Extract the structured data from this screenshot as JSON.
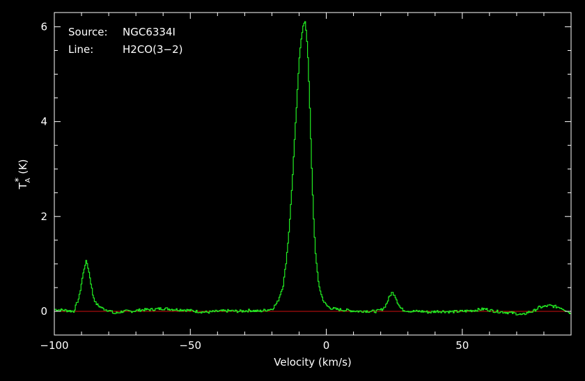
{
  "chart_data": {
    "type": "line",
    "xlabel": "Velocity (km/s)",
    "ylabel_main": "T",
    "ylabel_sup": "*",
    "ylabel_sub": "A",
    "ylabel_unit": "(K)",
    "xlim": [
      -100,
      90
    ],
    "ylim": [
      -0.5,
      6.3
    ],
    "xticks": [
      -100,
      -50,
      0,
      50
    ],
    "xtick_labels": [
      "−100",
      "−50",
      "0",
      "50"
    ],
    "yticks": [
      0,
      2,
      4,
      6
    ],
    "ytick_labels": [
      "0",
      "2",
      "4",
      "6"
    ],
    "grid": false,
    "annotations": [
      {
        "label": "Source:",
        "value": "NGC6334I"
      },
      {
        "label": "Line:",
        "value": "H2CO(3−2)"
      }
    ],
    "baseline": {
      "y": 0,
      "color": "#d01010"
    },
    "series": [
      {
        "color": "#22ee22",
        "x": [
          -100,
          -96,
          -93,
          -91,
          -90,
          -89,
          -88.5,
          -88,
          -87,
          -86,
          -85,
          -84,
          -82,
          -80,
          -78,
          -75,
          -72,
          -68,
          -64,
          -60,
          -56,
          -52,
          -48,
          -44,
          -40,
          -36,
          -32,
          -28,
          -25,
          -22,
          -20,
          -18,
          -16,
          -15,
          -14,
          -13,
          -12,
          -11,
          -10,
          -9.5,
          -9,
          -8.5,
          -8,
          -7.5,
          -7,
          -6.5,
          -6,
          -5.5,
          -5,
          -4.5,
          -4,
          -3.5,
          -3,
          -2,
          -1,
          0,
          1,
          2,
          4,
          6,
          8,
          10,
          12,
          14,
          16,
          18,
          20,
          21,
          22,
          23,
          24,
          25,
          26,
          27,
          28,
          30,
          32,
          35,
          38,
          40,
          43,
          46,
          50,
          54,
          58,
          62,
          66,
          70,
          72,
          74,
          76,
          78,
          80,
          82,
          84,
          86,
          88,
          90
        ],
        "y": [
          0.04,
          0.02,
          0.0,
          0.3,
          0.65,
          0.95,
          1.05,
          1.0,
          0.7,
          0.35,
          0.18,
          0.12,
          0.05,
          0.02,
          -0.05,
          0.0,
          0.0,
          0.03,
          0.04,
          0.06,
          0.04,
          0.03,
          0.0,
          -0.02,
          0.0,
          0.01,
          0.0,
          0.02,
          0.0,
          0.03,
          0.05,
          0.2,
          0.55,
          1.0,
          1.6,
          2.4,
          3.4,
          4.4,
          5.4,
          5.7,
          5.9,
          6.05,
          6.1,
          5.9,
          5.5,
          4.8,
          3.9,
          3.0,
          2.2,
          1.6,
          1.15,
          0.85,
          0.6,
          0.35,
          0.2,
          0.12,
          0.08,
          0.06,
          0.04,
          0.03,
          0.02,
          0.01,
          0.0,
          0.01,
          0.0,
          0.0,
          0.03,
          0.07,
          0.16,
          0.3,
          0.4,
          0.35,
          0.2,
          0.08,
          0.03,
          0.01,
          0.0,
          0.0,
          -0.02,
          0.0,
          0.0,
          -0.01,
          0.0,
          0.02,
          0.05,
          0.0,
          -0.02,
          -0.05,
          -0.08,
          -0.02,
          0.0,
          0.08,
          0.1,
          0.12,
          0.1,
          0.08,
          0.02,
          -0.05
        ]
      }
    ]
  }
}
